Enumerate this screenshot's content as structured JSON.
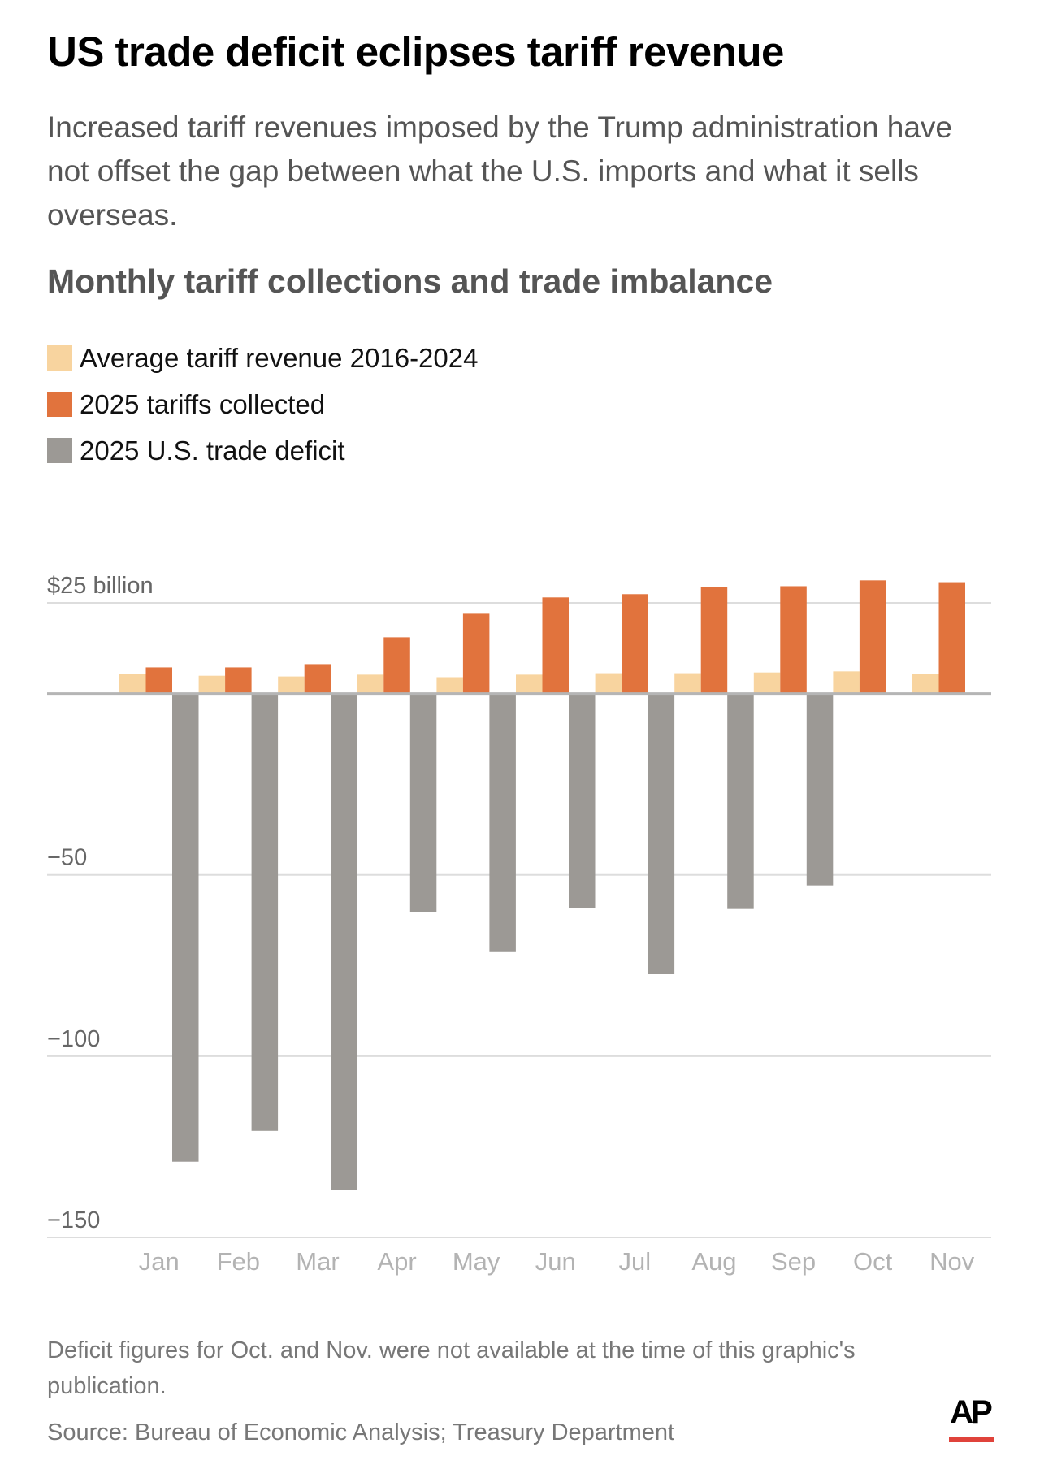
{
  "header": {
    "title": "US trade deficit eclipses tariff revenue",
    "subtitle": "Increased tariff revenues imposed by the Trump administration have not offset the gap between what the U.S. imports and what it sells overseas.",
    "chart_title": "Monthly tariff collections and trade imbalance"
  },
  "legend": [
    {
      "label": "Average tariff revenue 2016-2024",
      "color": "#f8d49f"
    },
    {
      "label": "2025 tariffs collected",
      "color": "#e1733d"
    },
    {
      "label": "2025 U.S. trade deficit",
      "color": "#9c9995"
    }
  ],
  "chart_data": {
    "type": "bar",
    "title": "Monthly tariff collections and trade imbalance",
    "xlabel": "",
    "ylabel": "$ billion",
    "ylim": [
      -150,
      25
    ],
    "yticks": [
      25,
      0,
      -50,
      -100,
      -150
    ],
    "ytick_labels": [
      "$25 billion",
      "",
      "−50",
      "−100",
      "−150"
    ],
    "grid": true,
    "legend_position": "top-left",
    "categories": [
      "Jan",
      "Feb",
      "Mar",
      "Apr",
      "May",
      "Jun",
      "Jul",
      "Aug",
      "Sep",
      "Oct",
      "Nov"
    ],
    "series": [
      {
        "name": "Average tariff revenue 2016-2024",
        "color": "#f8d49f",
        "values": [
          5.4,
          4.9,
          4.7,
          5.2,
          4.5,
          5.2,
          5.6,
          5.6,
          5.8,
          6.1,
          5.4
        ]
      },
      {
        "name": "2025 tariffs collected",
        "color": "#e1733d",
        "values": [
          7.2,
          7.2,
          8.1,
          15.5,
          22.0,
          26.5,
          27.4,
          29.4,
          29.6,
          31.2,
          30.7
        ]
      },
      {
        "name": "2025 U.S. trade deficit",
        "color": "#9c9995",
        "values": [
          -129.1,
          -120.6,
          -136.8,
          -60.3,
          -71.3,
          -59.2,
          -77.4,
          -59.4,
          -52.9,
          null,
          null
        ]
      }
    ]
  },
  "footer": {
    "note": "Deficit figures for Oct. and Nov. were not available at the time of this graphic's publication.",
    "source": "Source: Bureau of Economic Analysis; Treasury Department",
    "logo_text": "AP",
    "logo_accent": "#e0433b"
  }
}
